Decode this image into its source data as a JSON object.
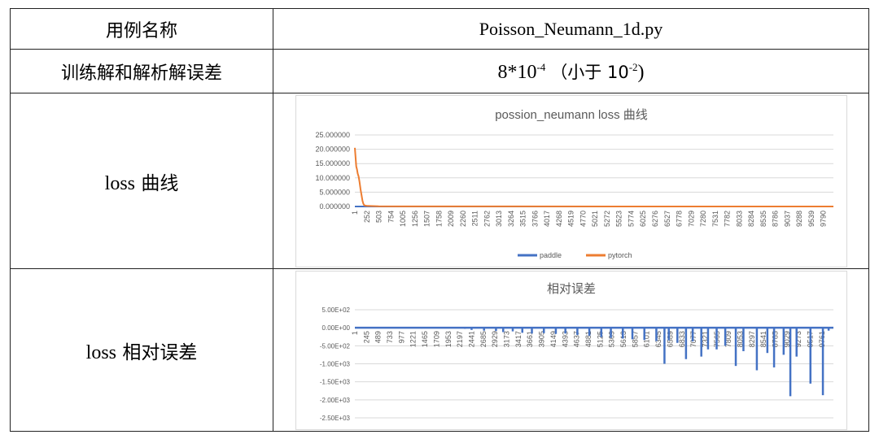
{
  "table": {
    "row1": {
      "label": "用例名称",
      "value": "Poisson_Neumann_1d.py"
    },
    "row2": {
      "label": "训练解和解析解误差",
      "value_base": "8*10",
      "value_exp": "-4",
      "value_paren_open": "（小于 10",
      "value_paren_exp": "-2",
      "value_paren_close": ")"
    },
    "row3": {
      "label_en": "loss",
      "label_cn": "曲线"
    },
    "row4": {
      "label_en": "loss",
      "label_cn": "相对误差"
    }
  },
  "chart_data": [
    {
      "type": "line",
      "title": "possion_neumann loss 曲线",
      "yticks": [
        "25.000000",
        "20.000000",
        "15.000000",
        "10.000000",
        "5.000000",
        "0.000000"
      ],
      "ylim": [
        0,
        25
      ],
      "xticks": [
        "1",
        "252",
        "503",
        "754",
        "1005",
        "1256",
        "1507",
        "1758",
        "2009",
        "2260",
        "2511",
        "2762",
        "3013",
        "3264",
        "3515",
        "3766",
        "4017",
        "4268",
        "4519",
        "4770",
        "5021",
        "5272",
        "5523",
        "5774",
        "6025",
        "6276",
        "6527",
        "6778",
        "7029",
        "7280",
        "7531",
        "7782",
        "8033",
        "8284",
        "8535",
        "8786",
        "9037",
        "9288",
        "9539",
        "9790"
      ],
      "xlim": [
        1,
        10000
      ],
      "grid": true,
      "legend": "bottom",
      "series": [
        {
          "name": "paddle",
          "color": "#4472c4",
          "points": [
            [
              1,
              0
            ],
            [
              10000,
              0
            ]
          ]
        },
        {
          "name": "pytorch",
          "color": "#ed7d31",
          "points": [
            [
              1,
              20.5
            ],
            [
              15,
              17.5
            ],
            [
              30,
              14
            ],
            [
              45,
              13
            ],
            [
              60,
              11.5
            ],
            [
              80,
              10.5
            ],
            [
              100,
              8.5
            ],
            [
              120,
              6
            ],
            [
              140,
              4
            ],
            [
              160,
              2
            ],
            [
              180,
              0.9
            ],
            [
              200,
              0.4
            ],
            [
              260,
              0.2
            ],
            [
              500,
              0.05
            ],
            [
              1000,
              0.02
            ],
            [
              10000,
              0.01
            ]
          ]
        }
      ]
    },
    {
      "type": "bar",
      "title": "相对误差",
      "yticks": [
        "5.00E+02",
        "0.00E+00",
        "-5.00E+02",
        "-1.00E+03",
        "-1.50E+03",
        "-2.00E+03",
        "-2.50E+03"
      ],
      "ylim": [
        -2500,
        500
      ],
      "xticks": [
        "1",
        "245",
        "489",
        "733",
        "977",
        "1221",
        "1465",
        "1709",
        "1953",
        "2197",
        "2441",
        "2685",
        "2929",
        "3173",
        "3417",
        "3661",
        "3905",
        "4149",
        "4393",
        "4637",
        "4881",
        "5125",
        "5369",
        "5613",
        "5857",
        "6101",
        "6345",
        "6589",
        "6833",
        "7077",
        "7321",
        "7565",
        "7809",
        "8053",
        "8297",
        "8541",
        "8785",
        "9029",
        "9273",
        "9517",
        "9761"
      ],
      "xlim": [
        1,
        10000
      ],
      "grid": true,
      "color": "#4472c4",
      "spikes": [
        [
          1400,
          -20
        ],
        [
          2300,
          -30
        ],
        [
          2440,
          -60
        ],
        [
          2700,
          -80
        ],
        [
          2950,
          -90
        ],
        [
          3100,
          -120
        ],
        [
          3300,
          -100
        ],
        [
          3500,
          -140
        ],
        [
          3700,
          -160
        ],
        [
          3950,
          -150
        ],
        [
          4200,
          -170
        ],
        [
          4400,
          -160
        ],
        [
          4650,
          -200
        ],
        [
          4900,
          -220
        ],
        [
          5150,
          -260
        ],
        [
          5350,
          -280
        ],
        [
          5600,
          -300
        ],
        [
          5800,
          -320
        ],
        [
          6050,
          -340
        ],
        [
          6300,
          -370
        ],
        [
          6470,
          -1000
        ],
        [
          6560,
          -350
        ],
        [
          6740,
          -420
        ],
        [
          6920,
          -870
        ],
        [
          7060,
          -380
        ],
        [
          7240,
          -800
        ],
        [
          7380,
          -600
        ],
        [
          7560,
          -600
        ],
        [
          7740,
          -500
        ],
        [
          7960,
          -1060
        ],
        [
          8120,
          -650
        ],
        [
          8400,
          -1180
        ],
        [
          8620,
          -700
        ],
        [
          8760,
          -1100
        ],
        [
          8960,
          -750
        ],
        [
          9100,
          -1900
        ],
        [
          9230,
          -800
        ],
        [
          9520,
          -1550
        ],
        [
          9780,
          -1870
        ],
        [
          9900,
          -80
        ]
      ]
    }
  ]
}
